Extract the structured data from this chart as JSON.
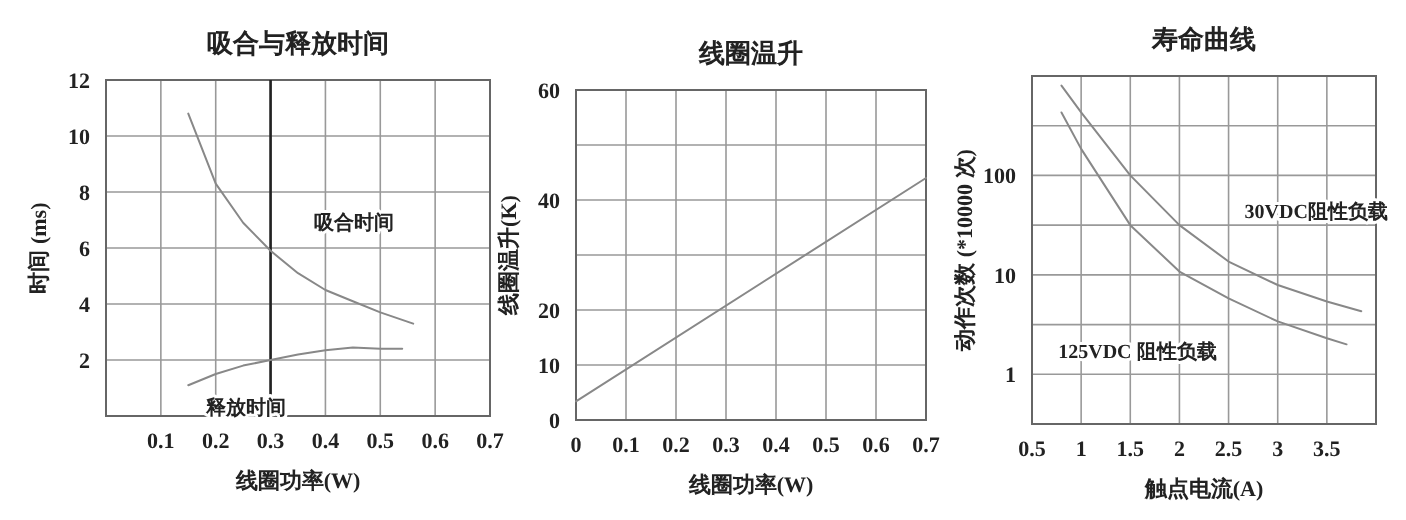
{
  "chart_data": [
    {
      "type": "line",
      "title": "吸合与释放时间",
      "xlabel": "线圈功率(W)",
      "ylabel": "时间 (ms)",
      "xlim": [
        0,
        0.7
      ],
      "ylim": [
        0,
        12
      ],
      "xticks": [
        {
          "value": 0,
          "label": null
        },
        0.1,
        0.2,
        0.3,
        0.4,
        0.5,
        0.6,
        0.7
      ],
      "yticks": [
        {
          "value": 0,
          "label": null
        },
        2,
        4,
        6,
        8,
        10,
        12
      ],
      "grid": true,
      "ref_lines": [
        {
          "axis": "x",
          "value": 0.3,
          "color": "#222222"
        }
      ],
      "series": [
        {
          "name": "吸合时间",
          "color": "#888888",
          "x": [
            0.15,
            0.2,
            0.25,
            0.3,
            0.35,
            0.4,
            0.45,
            0.5,
            0.56
          ],
          "values": [
            10.8,
            8.3,
            6.9,
            5.9,
            5.1,
            4.5,
            4.1,
            3.7,
            3.3
          ]
        },
        {
          "name": "释放时间",
          "color": "#888888",
          "x": [
            0.15,
            0.2,
            0.25,
            0.3,
            0.35,
            0.4,
            0.45,
            0.5,
            0.54
          ],
          "values": [
            1.1,
            1.5,
            1.8,
            2.0,
            2.2,
            2.35,
            2.45,
            2.4,
            2.4
          ]
        }
      ]
    },
    {
      "type": "line",
      "title": "线圈温升",
      "xlabel": "线圈功率(W)",
      "ylabel": "线圈温升(K)",
      "xlim": [
        0,
        0.7
      ],
      "ylim": [
        0,
        60
      ],
      "xticks": [
        0,
        0.1,
        0.2,
        0.3,
        0.4,
        0.5,
        0.6,
        0.7
      ],
      "yticks": [
        0,
        10,
        20,
        {
          "value": 30,
          "label": null
        },
        40,
        {
          "value": 50,
          "label": null
        },
        60
      ],
      "grid": true,
      "series": [
        {
          "color": "#888888",
          "x": [
            0,
            0.7
          ],
          "values": [
            3.4,
            44
          ]
        }
      ]
    },
    {
      "type": "line",
      "title": "寿命曲线",
      "xlabel": "触点电流(A)",
      "ylabel": "动作次数 (*10000 次)",
      "log": "y",
      "xlim": [
        0.5,
        4
      ],
      "ylim": [
        0.316,
        1000
      ],
      "xticks": [
        0.5,
        1,
        1.5,
        2,
        2.5,
        3,
        3.5,
        {
          "value": 4,
          "label": null
        }
      ],
      "yticks": [
        1,
        {
          "value": 3.16,
          "label": null
        },
        10,
        {
          "value": 31.6,
          "label": null
        },
        100,
        {
          "value": 316,
          "label": null
        }
      ],
      "grid": true,
      "series": [
        {
          "name": "30VDC阻性负载",
          "color": "#888888",
          "x": [
            0.8,
            1,
            1.5,
            2,
            2.5,
            3,
            3.5,
            3.85
          ],
          "values": [
            800,
            430,
            100,
            31.6,
            13.6,
            7.9,
            5.4,
            4.3
          ]
        },
        {
          "name": "125VDC 阻性负载",
          "color": "#888888",
          "x": [
            0.8,
            1,
            1.5,
            2,
            2.5,
            3,
            3.5,
            3.7
          ],
          "values": [
            430,
            185,
            31.6,
            10.8,
            5.8,
            3.4,
            2.3,
            2.0
          ]
        }
      ]
    }
  ]
}
